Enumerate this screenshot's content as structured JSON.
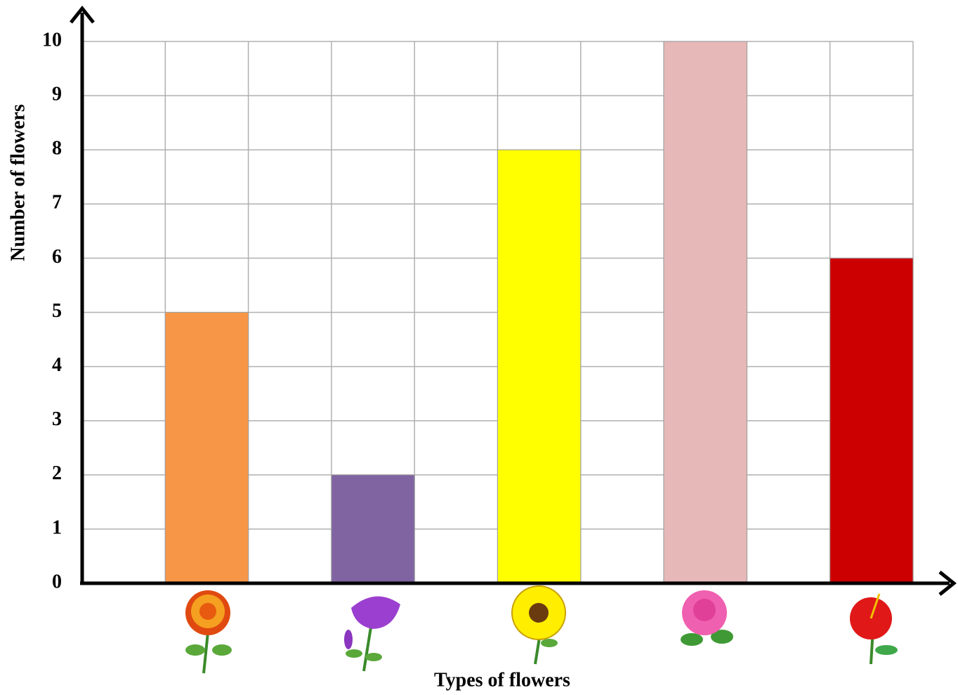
{
  "chart_data": {
    "type": "bar",
    "x_label": "Types of flowers",
    "y_label": "Number of flowers",
    "categories": [
      null,
      null,
      null,
      null,
      null
    ],
    "values": [
      5,
      2,
      8,
      10,
      6
    ],
    "colors": [
      "#f79646",
      "#8064a2",
      "#ffff00",
      "#e6b8b7",
      "#cc0000"
    ],
    "ylim": [
      0,
      10
    ],
    "yticks": [
      0,
      1,
      2,
      3,
      4,
      5,
      6,
      7,
      8,
      9,
      10
    ],
    "grid": true
  }
}
